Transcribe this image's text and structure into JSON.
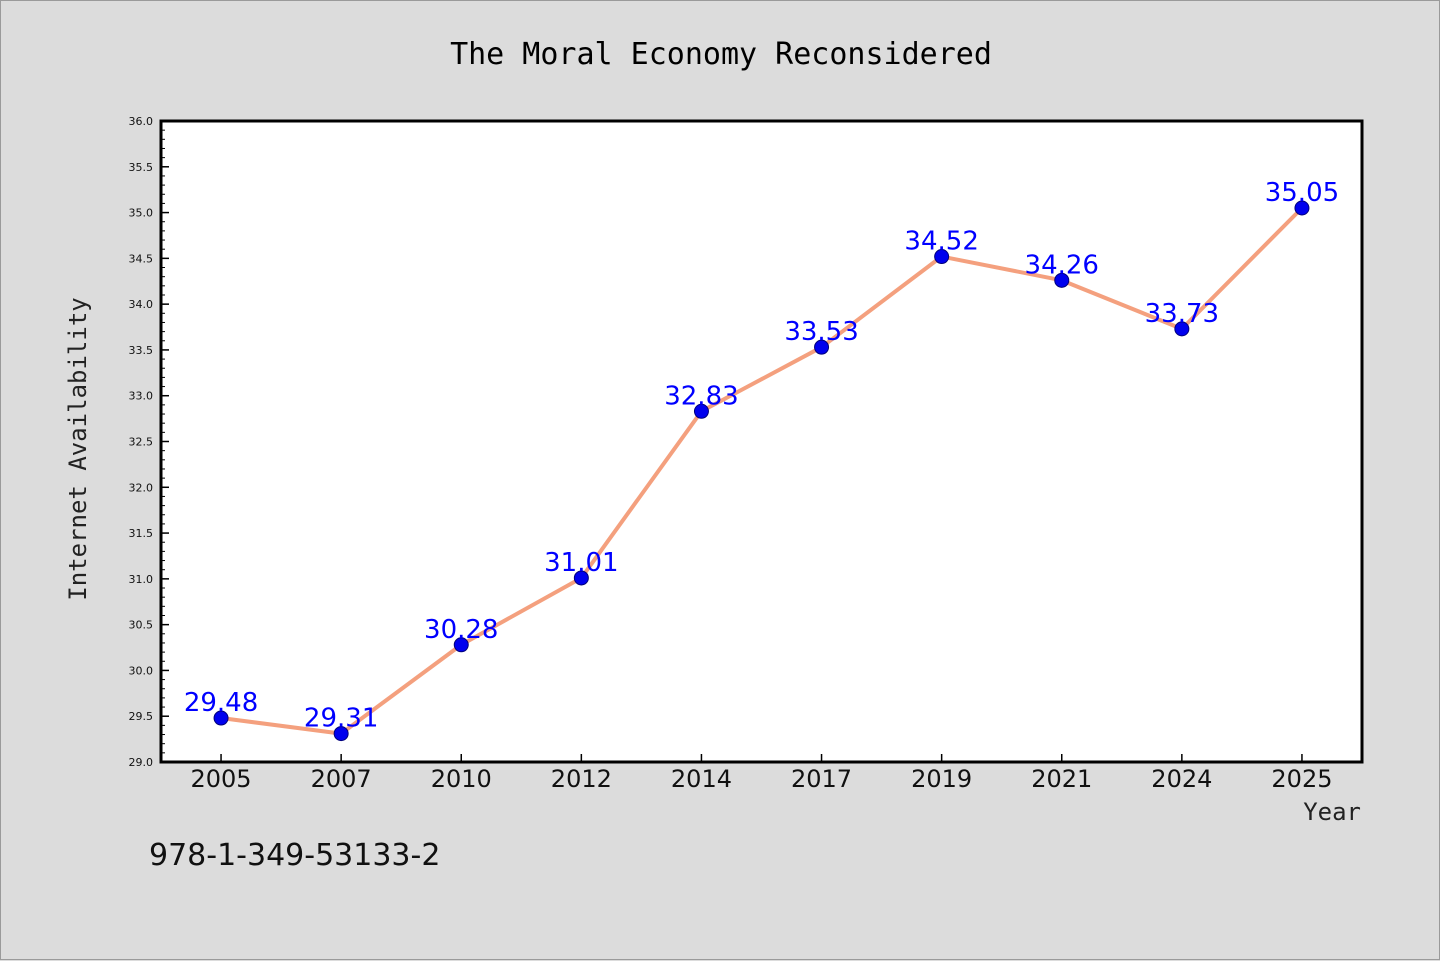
{
  "chart_data": {
    "type": "line",
    "title": "The Moral Economy Reconsidered",
    "xlabel": "Year",
    "ylabel": "Internet Availability",
    "categories": [
      "2005",
      "2007",
      "2010",
      "2012",
      "2014",
      "2017",
      "2019",
      "2021",
      "2024",
      "2025"
    ],
    "series": [
      {
        "values": [
          29.48,
          29.31,
          30.28,
          31.01,
          32.83,
          33.53,
          34.52,
          34.26,
          33.73,
          35.05
        ],
        "line_color": "#f4a07e",
        "marker_color": "#0000ee"
      }
    ],
    "ylim": [
      29.0,
      36.0
    ],
    "yticks": [
      "29.0",
      "29.5",
      "30.0",
      "30.5",
      "31.0",
      "31.5",
      "32.0",
      "32.5",
      "33.0",
      "33.5",
      "34.0",
      "34.5",
      "35.0",
      "35.5",
      "36.0"
    ],
    "data_labels": [
      "29.48",
      "29.31",
      "30.28",
      "31.01",
      "32.83",
      "33.53",
      "34.52",
      "34.26",
      "33.73",
      "35.05"
    ],
    "data_label_color": "#0000ff",
    "grid": false,
    "legend": "none"
  },
  "footer": {
    "isbn": "978-1-349-53133-2"
  }
}
